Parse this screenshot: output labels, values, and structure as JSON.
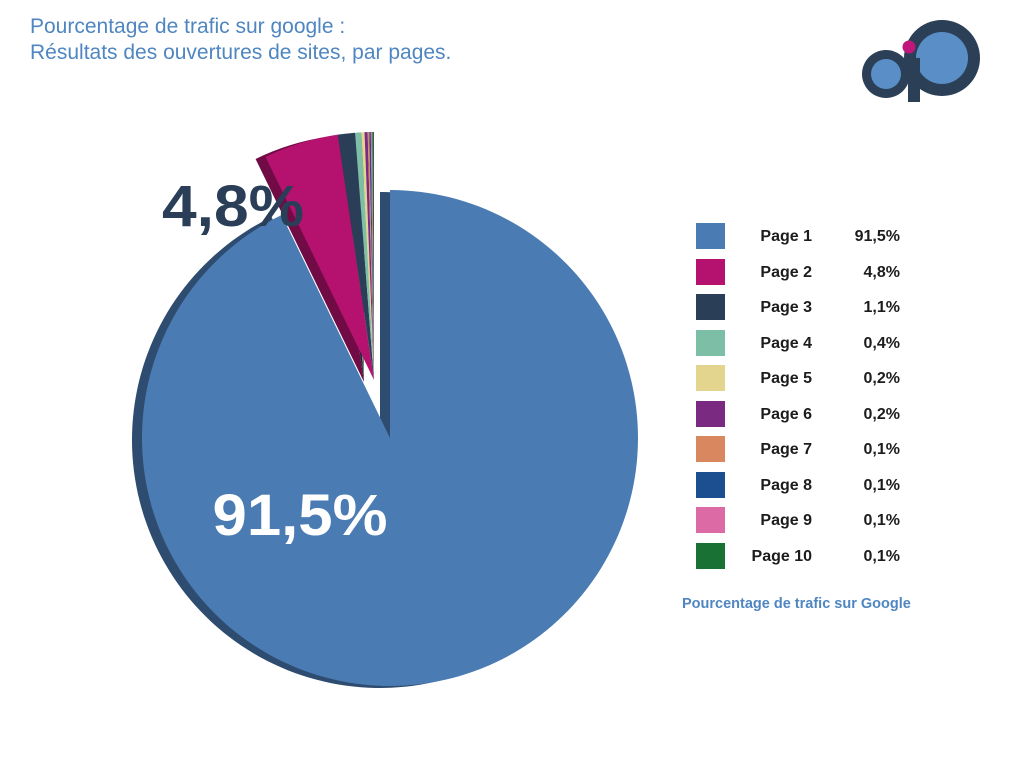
{
  "header": {
    "title_line1": "Pourcentage de trafic sur google :",
    "title_line2": "Résultats des ouvertures de sites, par pages."
  },
  "logo": {
    "icon": "ap-logo-icon",
    "colors": [
      "#2b3f57",
      "#5a8ec6",
      "#c0177a"
    ]
  },
  "chart_data": {
    "type": "pie",
    "title": "Pourcentage de trafic sur google",
    "categories": [
      "Page 1",
      "Page 2",
      "Page 3",
      "Page 4",
      "Page 5",
      "Page 6",
      "Page 7",
      "Page 8",
      "Page 9",
      "Page 10"
    ],
    "values": [
      91.5,
      4.8,
      1.1,
      0.4,
      0.2,
      0.2,
      0.1,
      0.1,
      0.1,
      0.1
    ],
    "value_labels": [
      "91,5%",
      "4,8%",
      "1,1%",
      "0,4%",
      "0,2%",
      "0,2%",
      "0,1%",
      "0,1%",
      "0,1%",
      "0,1%"
    ],
    "colors": [
      "#4a7bb3",
      "#b5126f",
      "#2b3e58",
      "#7cbfa6",
      "#e3d48e",
      "#7b2a82",
      "#d9875e",
      "#1b4f90",
      "#dc6aa5",
      "#1a7134"
    ],
    "slice_annotations": [
      "91,5%",
      "4,8%"
    ],
    "legend_placement": "right",
    "legend_caption": "Pourcentage de trafic sur Google"
  }
}
